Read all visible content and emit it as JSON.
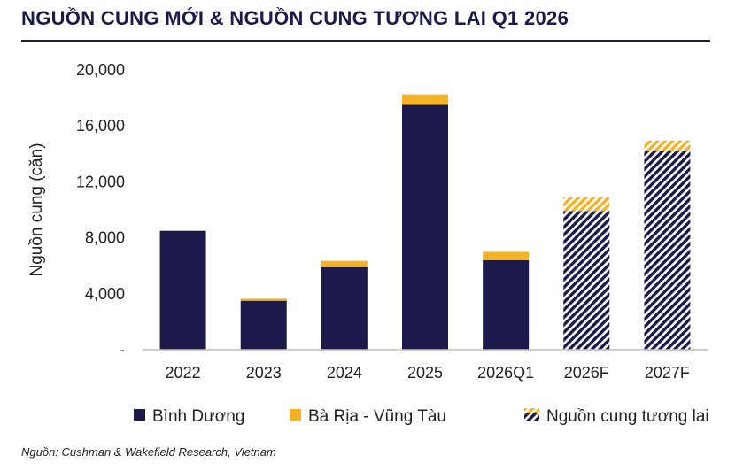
{
  "title": "NGUỒN CUNG MỚI & NGUỒN CUNG TƯƠNG LAI Q1 2026",
  "source": "Nguồn: Cushman & Wakefield Research, Vietnam",
  "colors": {
    "binh_duong": "#1c1a4a",
    "ba_ria": "#f5b324",
    "axis": "#bfbfbf",
    "title": "#1c1a4a"
  },
  "chart_data": {
    "type": "bar",
    "stacked": true,
    "categories": [
      "2022",
      "2023",
      "2024",
      "2025",
      "2026Q1",
      "2026F",
      "2027F"
    ],
    "series": [
      {
        "name": "Bình Dương",
        "values": [
          8500,
          3500,
          5900,
          17500,
          6400,
          9900,
          14200
        ]
      },
      {
        "name": "Bà Rịa - Vũng Tàu",
        "values": [
          0,
          150,
          450,
          750,
          600,
          1000,
          750
        ]
      }
    ],
    "future_categories": [
      "2026F",
      "2027F"
    ],
    "future_legend": "Nguồn cung tương lai",
    "ylabel": "Nguồn cung (căn)",
    "ylim": [
      0,
      20000
    ],
    "yticks": [
      0,
      4000,
      8000,
      12000,
      16000,
      20000
    ],
    "ytick_labels": [
      "-",
      "4,000",
      "8,000",
      "12,000",
      "16,000",
      "20,000"
    ],
    "grid": false,
    "legend_position": "bottom"
  }
}
